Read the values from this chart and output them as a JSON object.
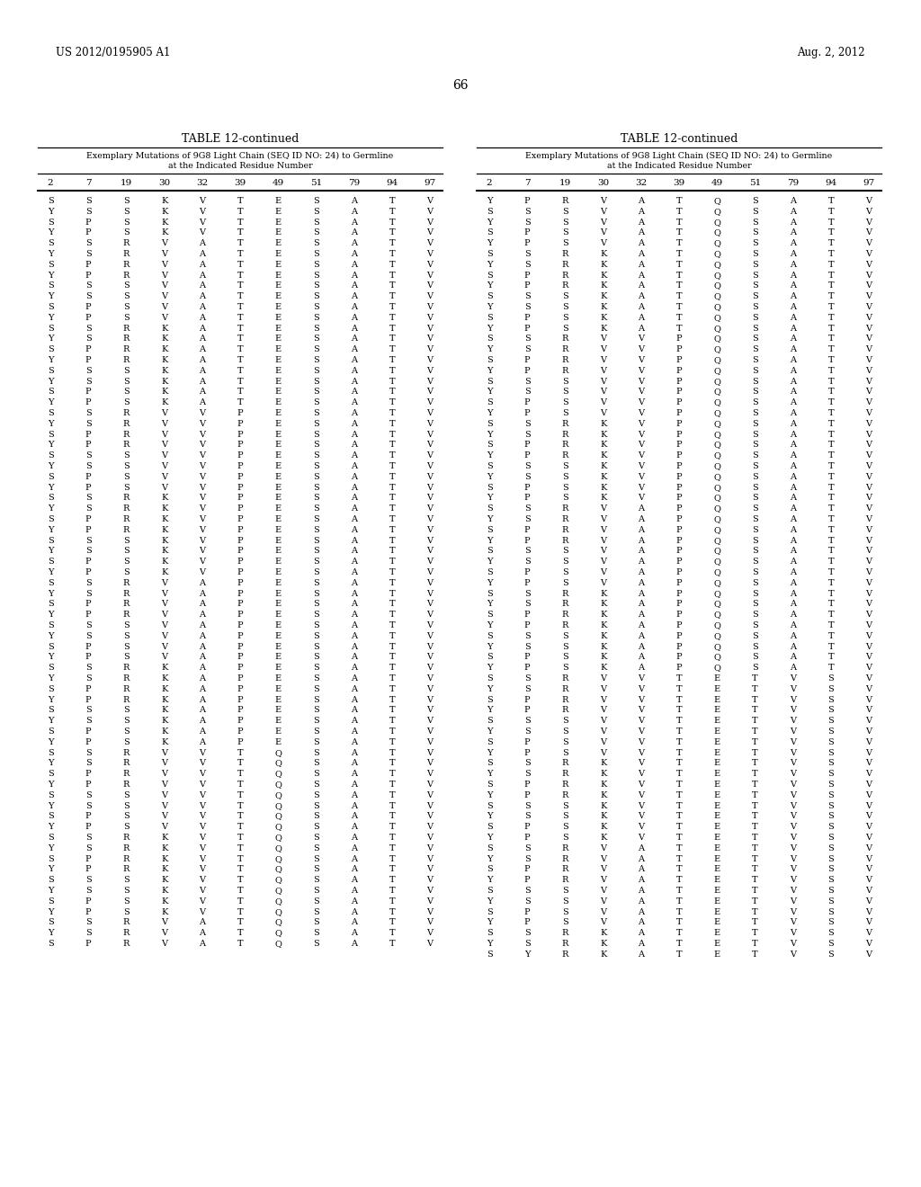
{
  "page_header_left": "US 2012/0195905 A1",
  "page_header_right": "Aug. 2, 2012",
  "page_number": "66",
  "table_title": "TABLE 12-continued",
  "table_subtitle_line1": "Exemplary Mutations of 9G8 Light Chain (SEQ ID NO: 24) to Germline",
  "table_subtitle_line2": "at the Indicated Residue Number",
  "col_headers": [
    "2",
    "7",
    "19",
    "30",
    "32",
    "39",
    "49",
    "51",
    "79",
    "94",
    "97"
  ],
  "left_data": [
    [
      "S",
      "S",
      "S",
      "K",
      "V",
      "T",
      "E",
      "S",
      "A",
      "T",
      "V"
    ],
    [
      "Y",
      "S",
      "S",
      "K",
      "V",
      "T",
      "E",
      "S",
      "A",
      "T",
      "V"
    ],
    [
      "S",
      "P",
      "S",
      "K",
      "V",
      "T",
      "E",
      "S",
      "A",
      "T",
      "V"
    ],
    [
      "Y",
      "P",
      "S",
      "K",
      "V",
      "T",
      "E",
      "S",
      "A",
      "T",
      "V"
    ],
    [
      "S",
      "S",
      "R",
      "V",
      "A",
      "T",
      "E",
      "S",
      "A",
      "T",
      "V"
    ],
    [
      "Y",
      "S",
      "R",
      "V",
      "A",
      "T",
      "E",
      "S",
      "A",
      "T",
      "V"
    ],
    [
      "S",
      "P",
      "R",
      "V",
      "A",
      "T",
      "E",
      "S",
      "A",
      "T",
      "V"
    ],
    [
      "Y",
      "P",
      "R",
      "V",
      "A",
      "T",
      "E",
      "S",
      "A",
      "T",
      "V"
    ],
    [
      "S",
      "S",
      "S",
      "V",
      "A",
      "T",
      "E",
      "S",
      "A",
      "T",
      "V"
    ],
    [
      "Y",
      "S",
      "S",
      "V",
      "A",
      "T",
      "E",
      "S",
      "A",
      "T",
      "V"
    ],
    [
      "S",
      "P",
      "S",
      "V",
      "A",
      "T",
      "E",
      "S",
      "A",
      "T",
      "V"
    ],
    [
      "Y",
      "P",
      "S",
      "V",
      "A",
      "T",
      "E",
      "S",
      "A",
      "T",
      "V"
    ],
    [
      "S",
      "S",
      "R",
      "K",
      "A",
      "T",
      "E",
      "S",
      "A",
      "T",
      "V"
    ],
    [
      "Y",
      "S",
      "R",
      "K",
      "A",
      "T",
      "E",
      "S",
      "A",
      "T",
      "V"
    ],
    [
      "S",
      "P",
      "R",
      "K",
      "A",
      "T",
      "E",
      "S",
      "A",
      "T",
      "V"
    ],
    [
      "Y",
      "P",
      "R",
      "K",
      "A",
      "T",
      "E",
      "S",
      "A",
      "T",
      "V"
    ],
    [
      "S",
      "S",
      "S",
      "K",
      "A",
      "T",
      "E",
      "S",
      "A",
      "T",
      "V"
    ],
    [
      "Y",
      "S",
      "S",
      "K",
      "A",
      "T",
      "E",
      "S",
      "A",
      "T",
      "V"
    ],
    [
      "S",
      "P",
      "S",
      "K",
      "A",
      "T",
      "E",
      "S",
      "A",
      "T",
      "V"
    ],
    [
      "Y",
      "P",
      "S",
      "K",
      "A",
      "T",
      "E",
      "S",
      "A",
      "T",
      "V"
    ],
    [
      "S",
      "S",
      "R",
      "V",
      "V",
      "P",
      "E",
      "S",
      "A",
      "T",
      "V"
    ],
    [
      "Y",
      "S",
      "R",
      "V",
      "V",
      "P",
      "E",
      "S",
      "A",
      "T",
      "V"
    ],
    [
      "S",
      "P",
      "R",
      "V",
      "V",
      "P",
      "E",
      "S",
      "A",
      "T",
      "V"
    ],
    [
      "Y",
      "P",
      "R",
      "V",
      "V",
      "P",
      "E",
      "S",
      "A",
      "T",
      "V"
    ],
    [
      "S",
      "S",
      "S",
      "V",
      "V",
      "P",
      "E",
      "S",
      "A",
      "T",
      "V"
    ],
    [
      "Y",
      "S",
      "S",
      "V",
      "V",
      "P",
      "E",
      "S",
      "A",
      "T",
      "V"
    ],
    [
      "S",
      "P",
      "S",
      "V",
      "V",
      "P",
      "E",
      "S",
      "A",
      "T",
      "V"
    ],
    [
      "Y",
      "P",
      "S",
      "V",
      "V",
      "P",
      "E",
      "S",
      "A",
      "T",
      "V"
    ],
    [
      "S",
      "S",
      "R",
      "K",
      "V",
      "P",
      "E",
      "S",
      "A",
      "T",
      "V"
    ],
    [
      "Y",
      "S",
      "R",
      "K",
      "V",
      "P",
      "E",
      "S",
      "A",
      "T",
      "V"
    ],
    [
      "S",
      "P",
      "R",
      "K",
      "V",
      "P",
      "E",
      "S",
      "A",
      "T",
      "V"
    ],
    [
      "Y",
      "P",
      "R",
      "K",
      "V",
      "P",
      "E",
      "S",
      "A",
      "T",
      "V"
    ],
    [
      "S",
      "S",
      "S",
      "K",
      "V",
      "P",
      "E",
      "S",
      "A",
      "T",
      "V"
    ],
    [
      "Y",
      "S",
      "S",
      "K",
      "V",
      "P",
      "E",
      "S",
      "A",
      "T",
      "V"
    ],
    [
      "S",
      "P",
      "S",
      "K",
      "V",
      "P",
      "E",
      "S",
      "A",
      "T",
      "V"
    ],
    [
      "Y",
      "P",
      "S",
      "K",
      "V",
      "P",
      "E",
      "S",
      "A",
      "T",
      "V"
    ],
    [
      "S",
      "S",
      "R",
      "V",
      "A",
      "P",
      "E",
      "S",
      "A",
      "T",
      "V"
    ],
    [
      "Y",
      "S",
      "R",
      "V",
      "A",
      "P",
      "E",
      "S",
      "A",
      "T",
      "V"
    ],
    [
      "S",
      "P",
      "R",
      "V",
      "A",
      "P",
      "E",
      "S",
      "A",
      "T",
      "V"
    ],
    [
      "Y",
      "P",
      "R",
      "V",
      "A",
      "P",
      "E",
      "S",
      "A",
      "T",
      "V"
    ],
    [
      "S",
      "S",
      "S",
      "V",
      "A",
      "P",
      "E",
      "S",
      "A",
      "T",
      "V"
    ],
    [
      "Y",
      "S",
      "S",
      "V",
      "A",
      "P",
      "E",
      "S",
      "A",
      "T",
      "V"
    ],
    [
      "S",
      "P",
      "S",
      "V",
      "A",
      "P",
      "E",
      "S",
      "A",
      "T",
      "V"
    ],
    [
      "Y",
      "P",
      "S",
      "V",
      "A",
      "P",
      "E",
      "S",
      "A",
      "T",
      "V"
    ],
    [
      "S",
      "S",
      "R",
      "K",
      "A",
      "P",
      "E",
      "S",
      "A",
      "T",
      "V"
    ],
    [
      "Y",
      "S",
      "R",
      "K",
      "A",
      "P",
      "E",
      "S",
      "A",
      "T",
      "V"
    ],
    [
      "S",
      "P",
      "R",
      "K",
      "A",
      "P",
      "E",
      "S",
      "A",
      "T",
      "V"
    ],
    [
      "Y",
      "P",
      "R",
      "K",
      "A",
      "P",
      "E",
      "S",
      "A",
      "T",
      "V"
    ],
    [
      "S",
      "S",
      "S",
      "K",
      "A",
      "P",
      "E",
      "S",
      "A",
      "T",
      "V"
    ],
    [
      "Y",
      "S",
      "S",
      "K",
      "A",
      "P",
      "E",
      "S",
      "A",
      "T",
      "V"
    ],
    [
      "S",
      "P",
      "S",
      "K",
      "A",
      "P",
      "E",
      "S",
      "A",
      "T",
      "V"
    ],
    [
      "Y",
      "P",
      "S",
      "K",
      "A",
      "P",
      "E",
      "S",
      "A",
      "T",
      "V"
    ],
    [
      "S",
      "S",
      "R",
      "V",
      "V",
      "T",
      "Q",
      "S",
      "A",
      "T",
      "V"
    ],
    [
      "Y",
      "S",
      "R",
      "V",
      "V",
      "T",
      "Q",
      "S",
      "A",
      "T",
      "V"
    ],
    [
      "S",
      "P",
      "R",
      "V",
      "V",
      "T",
      "Q",
      "S",
      "A",
      "T",
      "V"
    ],
    [
      "Y",
      "P",
      "R",
      "V",
      "V",
      "T",
      "Q",
      "S",
      "A",
      "T",
      "V"
    ],
    [
      "S",
      "S",
      "S",
      "V",
      "V",
      "T",
      "Q",
      "S",
      "A",
      "T",
      "V"
    ],
    [
      "Y",
      "S",
      "S",
      "V",
      "V",
      "T",
      "Q",
      "S",
      "A",
      "T",
      "V"
    ],
    [
      "S",
      "P",
      "S",
      "V",
      "V",
      "T",
      "Q",
      "S",
      "A",
      "T",
      "V"
    ],
    [
      "Y",
      "P",
      "S",
      "V",
      "V",
      "T",
      "Q",
      "S",
      "A",
      "T",
      "V"
    ],
    [
      "S",
      "S",
      "R",
      "K",
      "V",
      "T",
      "Q",
      "S",
      "A",
      "T",
      "V"
    ],
    [
      "Y",
      "S",
      "R",
      "K",
      "V",
      "T",
      "Q",
      "S",
      "A",
      "T",
      "V"
    ],
    [
      "S",
      "P",
      "R",
      "K",
      "V",
      "T",
      "Q",
      "S",
      "A",
      "T",
      "V"
    ],
    [
      "Y",
      "P",
      "R",
      "K",
      "V",
      "T",
      "Q",
      "S",
      "A",
      "T",
      "V"
    ],
    [
      "S",
      "S",
      "S",
      "K",
      "V",
      "T",
      "Q",
      "S",
      "A",
      "T",
      "V"
    ],
    [
      "Y",
      "S",
      "S",
      "K",
      "V",
      "T",
      "Q",
      "S",
      "A",
      "T",
      "V"
    ],
    [
      "S",
      "P",
      "S",
      "K",
      "V",
      "T",
      "Q",
      "S",
      "A",
      "T",
      "V"
    ],
    [
      "Y",
      "P",
      "S",
      "K",
      "V",
      "T",
      "Q",
      "S",
      "A",
      "T",
      "V"
    ],
    [
      "S",
      "S",
      "R",
      "V",
      "A",
      "T",
      "Q",
      "S",
      "A",
      "T",
      "V"
    ],
    [
      "Y",
      "S",
      "R",
      "V",
      "A",
      "T",
      "Q",
      "S",
      "A",
      "T",
      "V"
    ],
    [
      "S",
      "P",
      "R",
      "V",
      "A",
      "T",
      "Q",
      "S",
      "A",
      "T",
      "V"
    ]
  ],
  "right_data": [
    [
      "Y",
      "P",
      "R",
      "V",
      "A",
      "T",
      "Q",
      "S",
      "A",
      "T",
      "V"
    ],
    [
      "S",
      "S",
      "S",
      "V",
      "A",
      "T",
      "Q",
      "S",
      "A",
      "T",
      "V"
    ],
    [
      "Y",
      "S",
      "S",
      "V",
      "A",
      "T",
      "Q",
      "S",
      "A",
      "T",
      "V"
    ],
    [
      "S",
      "P",
      "S",
      "V",
      "A",
      "T",
      "Q",
      "S",
      "A",
      "T",
      "V"
    ],
    [
      "Y",
      "P",
      "S",
      "V",
      "A",
      "T",
      "Q",
      "S",
      "A",
      "T",
      "V"
    ],
    [
      "S",
      "S",
      "R",
      "K",
      "A",
      "T",
      "Q",
      "S",
      "A",
      "T",
      "V"
    ],
    [
      "Y",
      "S",
      "R",
      "K",
      "A",
      "T",
      "Q",
      "S",
      "A",
      "T",
      "V"
    ],
    [
      "S",
      "P",
      "R",
      "K",
      "A",
      "T",
      "Q",
      "S",
      "A",
      "T",
      "V"
    ],
    [
      "Y",
      "P",
      "R",
      "K",
      "A",
      "T",
      "Q",
      "S",
      "A",
      "T",
      "V"
    ],
    [
      "S",
      "S",
      "S",
      "K",
      "A",
      "T",
      "Q",
      "S",
      "A",
      "T",
      "V"
    ],
    [
      "Y",
      "S",
      "S",
      "K",
      "A",
      "T",
      "Q",
      "S",
      "A",
      "T",
      "V"
    ],
    [
      "S",
      "P",
      "S",
      "K",
      "A",
      "T",
      "Q",
      "S",
      "A",
      "T",
      "V"
    ],
    [
      "Y",
      "P",
      "S",
      "K",
      "A",
      "T",
      "Q",
      "S",
      "A",
      "T",
      "V"
    ],
    [
      "S",
      "S",
      "R",
      "V",
      "V",
      "P",
      "Q",
      "S",
      "A",
      "T",
      "V"
    ],
    [
      "Y",
      "S",
      "R",
      "V",
      "V",
      "P",
      "Q",
      "S",
      "A",
      "T",
      "V"
    ],
    [
      "S",
      "P",
      "R",
      "V",
      "V",
      "P",
      "Q",
      "S",
      "A",
      "T",
      "V"
    ],
    [
      "Y",
      "P",
      "R",
      "V",
      "V",
      "P",
      "Q",
      "S",
      "A",
      "T",
      "V"
    ],
    [
      "S",
      "S",
      "S",
      "V",
      "V",
      "P",
      "Q",
      "S",
      "A",
      "T",
      "V"
    ],
    [
      "Y",
      "S",
      "S",
      "V",
      "V",
      "P",
      "Q",
      "S",
      "A",
      "T",
      "V"
    ],
    [
      "S",
      "P",
      "S",
      "V",
      "V",
      "P",
      "Q",
      "S",
      "A",
      "T",
      "V"
    ],
    [
      "Y",
      "P",
      "S",
      "V",
      "V",
      "P",
      "Q",
      "S",
      "A",
      "T",
      "V"
    ],
    [
      "S",
      "S",
      "R",
      "K",
      "V",
      "P",
      "Q",
      "S",
      "A",
      "T",
      "V"
    ],
    [
      "Y",
      "S",
      "R",
      "K",
      "V",
      "P",
      "Q",
      "S",
      "A",
      "T",
      "V"
    ],
    [
      "S",
      "P",
      "R",
      "K",
      "V",
      "P",
      "Q",
      "S",
      "A",
      "T",
      "V"
    ],
    [
      "Y",
      "P",
      "R",
      "K",
      "V",
      "P",
      "Q",
      "S",
      "A",
      "T",
      "V"
    ],
    [
      "S",
      "S",
      "S",
      "K",
      "V",
      "P",
      "Q",
      "S",
      "A",
      "T",
      "V"
    ],
    [
      "Y",
      "S",
      "S",
      "K",
      "V",
      "P",
      "Q",
      "S",
      "A",
      "T",
      "V"
    ],
    [
      "S",
      "P",
      "S",
      "K",
      "V",
      "P",
      "Q",
      "S",
      "A",
      "T",
      "V"
    ],
    [
      "Y",
      "P",
      "S",
      "K",
      "V",
      "P",
      "Q",
      "S",
      "A",
      "T",
      "V"
    ],
    [
      "S",
      "S",
      "R",
      "V",
      "A",
      "P",
      "Q",
      "S",
      "A",
      "T",
      "V"
    ],
    [
      "Y",
      "S",
      "R",
      "V",
      "A",
      "P",
      "Q",
      "S",
      "A",
      "T",
      "V"
    ],
    [
      "S",
      "P",
      "R",
      "V",
      "A",
      "P",
      "Q",
      "S",
      "A",
      "T",
      "V"
    ],
    [
      "Y",
      "P",
      "R",
      "V",
      "A",
      "P",
      "Q",
      "S",
      "A",
      "T",
      "V"
    ],
    [
      "S",
      "S",
      "S",
      "V",
      "A",
      "P",
      "Q",
      "S",
      "A",
      "T",
      "V"
    ],
    [
      "Y",
      "S",
      "S",
      "V",
      "A",
      "P",
      "Q",
      "S",
      "A",
      "T",
      "V"
    ],
    [
      "S",
      "P",
      "S",
      "V",
      "A",
      "P",
      "Q",
      "S",
      "A",
      "T",
      "V"
    ],
    [
      "Y",
      "P",
      "S",
      "V",
      "A",
      "P",
      "Q",
      "S",
      "A",
      "T",
      "V"
    ],
    [
      "S",
      "S",
      "R",
      "K",
      "A",
      "P",
      "Q",
      "S",
      "A",
      "T",
      "V"
    ],
    [
      "Y",
      "S",
      "R",
      "K",
      "A",
      "P",
      "Q",
      "S",
      "A",
      "T",
      "V"
    ],
    [
      "S",
      "P",
      "R",
      "K",
      "A",
      "P",
      "Q",
      "S",
      "A",
      "T",
      "V"
    ],
    [
      "Y",
      "P",
      "R",
      "K",
      "A",
      "P",
      "Q",
      "S",
      "A",
      "T",
      "V"
    ],
    [
      "S",
      "S",
      "S",
      "K",
      "A",
      "P",
      "Q",
      "S",
      "A",
      "T",
      "V"
    ],
    [
      "Y",
      "S",
      "S",
      "K",
      "A",
      "P",
      "Q",
      "S",
      "A",
      "T",
      "V"
    ],
    [
      "S",
      "P",
      "S",
      "K",
      "A",
      "P",
      "Q",
      "S",
      "A",
      "T",
      "V"
    ],
    [
      "Y",
      "P",
      "S",
      "K",
      "A",
      "P",
      "Q",
      "S",
      "A",
      "T",
      "V"
    ],
    [
      "S",
      "S",
      "R",
      "V",
      "V",
      "T",
      "E",
      "T",
      "V",
      "S",
      "V"
    ],
    [
      "Y",
      "S",
      "R",
      "V",
      "V",
      "T",
      "E",
      "T",
      "V",
      "S",
      "V"
    ],
    [
      "S",
      "P",
      "R",
      "V",
      "V",
      "T",
      "E",
      "T",
      "V",
      "S",
      "V"
    ],
    [
      "Y",
      "P",
      "R",
      "V",
      "V",
      "T",
      "E",
      "T",
      "V",
      "S",
      "V"
    ],
    [
      "S",
      "S",
      "S",
      "V",
      "V",
      "T",
      "E",
      "T",
      "V",
      "S",
      "V"
    ],
    [
      "Y",
      "S",
      "S",
      "V",
      "V",
      "T",
      "E",
      "T",
      "V",
      "S",
      "V"
    ],
    [
      "S",
      "P",
      "S",
      "V",
      "V",
      "T",
      "E",
      "T",
      "V",
      "S",
      "V"
    ],
    [
      "Y",
      "P",
      "S",
      "V",
      "V",
      "T",
      "E",
      "T",
      "V",
      "S",
      "V"
    ],
    [
      "S",
      "S",
      "R",
      "K",
      "V",
      "T",
      "E",
      "T",
      "V",
      "S",
      "V"
    ],
    [
      "Y",
      "S",
      "R",
      "K",
      "V",
      "T",
      "E",
      "T",
      "V",
      "S",
      "V"
    ],
    [
      "S",
      "P",
      "R",
      "K",
      "V",
      "T",
      "E",
      "T",
      "V",
      "S",
      "V"
    ],
    [
      "Y",
      "P",
      "R",
      "K",
      "V",
      "T",
      "E",
      "T",
      "V",
      "S",
      "V"
    ],
    [
      "S",
      "S",
      "S",
      "K",
      "V",
      "T",
      "E",
      "T",
      "V",
      "S",
      "V"
    ],
    [
      "Y",
      "S",
      "S",
      "K",
      "V",
      "T",
      "E",
      "T",
      "V",
      "S",
      "V"
    ],
    [
      "S",
      "P",
      "S",
      "K",
      "V",
      "T",
      "E",
      "T",
      "V",
      "S",
      "V"
    ],
    [
      "Y",
      "P",
      "S",
      "K",
      "V",
      "T",
      "E",
      "T",
      "V",
      "S",
      "V"
    ],
    [
      "S",
      "S",
      "R",
      "V",
      "A",
      "T",
      "E",
      "T",
      "V",
      "S",
      "V"
    ],
    [
      "Y",
      "S",
      "R",
      "V",
      "A",
      "T",
      "E",
      "T",
      "V",
      "S",
      "V"
    ],
    [
      "S",
      "P",
      "R",
      "V",
      "A",
      "T",
      "E",
      "T",
      "V",
      "S",
      "V"
    ],
    [
      "Y",
      "P",
      "R",
      "V",
      "A",
      "T",
      "E",
      "T",
      "V",
      "S",
      "V"
    ],
    [
      "S",
      "S",
      "S",
      "V",
      "A",
      "T",
      "E",
      "T",
      "V",
      "S",
      "V"
    ],
    [
      "Y",
      "S",
      "S",
      "V",
      "A",
      "T",
      "E",
      "T",
      "V",
      "S",
      "V"
    ],
    [
      "S",
      "P",
      "S",
      "V",
      "A",
      "T",
      "E",
      "T",
      "V",
      "S",
      "V"
    ],
    [
      "Y",
      "P",
      "S",
      "V",
      "A",
      "T",
      "E",
      "T",
      "V",
      "S",
      "V"
    ],
    [
      "S",
      "S",
      "R",
      "K",
      "A",
      "T",
      "E",
      "T",
      "V",
      "S",
      "V"
    ],
    [
      "Y",
      "S",
      "R",
      "K",
      "A",
      "T",
      "E",
      "T",
      "V",
      "S",
      "V"
    ],
    [
      "S",
      "Y",
      "R",
      "K",
      "A",
      "T",
      "E",
      "T",
      "V",
      "S",
      "V"
    ]
  ],
  "bg_color": "#ffffff",
  "text_color": "#000000"
}
